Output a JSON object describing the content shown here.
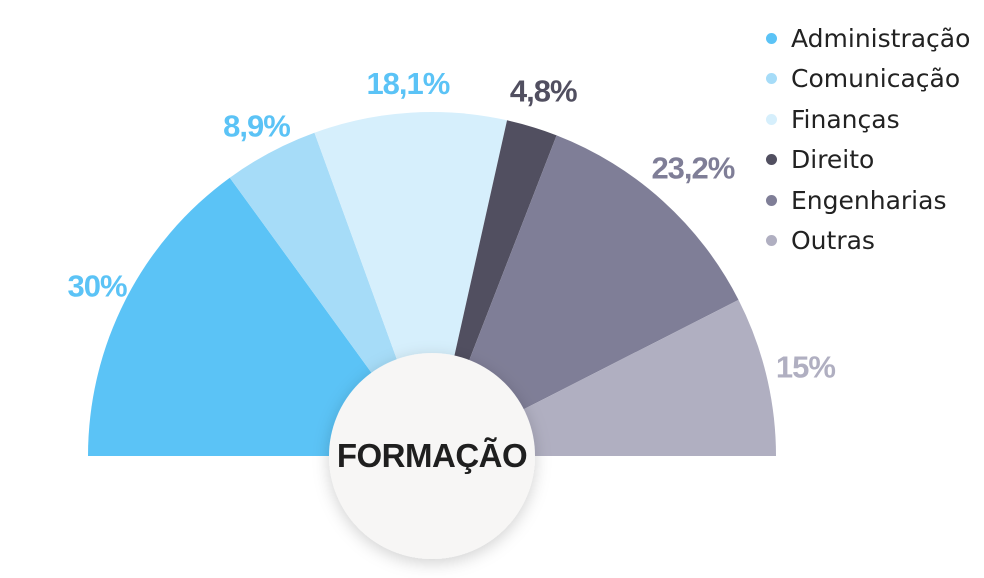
{
  "chart_data": {
    "type": "pie",
    "layout": "semicircle",
    "title": "FORMAÇÃO",
    "categories": [
      "Administração",
      "Comunicação",
      "Finanças",
      "Direito",
      "Engenharias",
      "Outras"
    ],
    "values": [
      30,
      8.9,
      18.1,
      4.8,
      23.2,
      15
    ],
    "labels": [
      "30%",
      "8,9%",
      "18,1%",
      "4,8%",
      "23,2%",
      "15%"
    ],
    "colors": [
      "#5bc3f6",
      "#a6dcf8",
      "#d6effc",
      "#514f60",
      "#7f7e97",
      "#b0afc1"
    ],
    "label_colors": [
      "#5bc3f6",
      "#5bc3f6",
      "#5bc3f6",
      "#514f60",
      "#7f7e97",
      "#b0afc1"
    ],
    "legend_position": "top-right"
  }
}
